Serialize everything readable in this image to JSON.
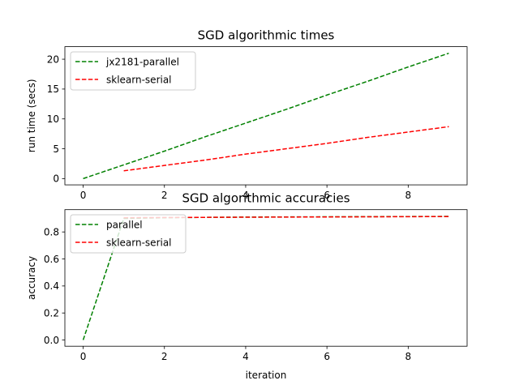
{
  "chart_data": [
    {
      "type": "line",
      "title": "SGD algorithmic times",
      "xlabel": "",
      "ylabel": "run time (secs)",
      "xlim": [
        -0.45,
        9.45
      ],
      "ylim": [
        -1.05,
        22.1
      ],
      "xticks": [
        0,
        2,
        4,
        6,
        8
      ],
      "yticks": [
        0,
        5,
        10,
        15,
        20
      ],
      "legend": "top-left",
      "grid": false,
      "series": [
        {
          "name": "jx2181-parallel",
          "color": "#008000",
          "style": "dashed",
          "x": [
            0,
            1,
            2,
            3,
            4,
            5,
            6,
            7,
            8,
            9
          ],
          "y": [
            0,
            2.3,
            4.6,
            7.0,
            9.3,
            11.6,
            14.0,
            16.3,
            18.7,
            21.0
          ]
        },
        {
          "name": "sklearn-serial",
          "color": "#ff0000",
          "style": "dashed",
          "x": [
            1,
            2,
            3,
            4,
            5,
            6,
            7,
            8,
            9
          ],
          "y": [
            1.3,
            2.2,
            3.1,
            4.1,
            5.0,
            5.9,
            6.9,
            7.8,
            8.7
          ]
        }
      ]
    },
    {
      "type": "line",
      "title": "SGD algorithmic accuracies",
      "xlabel": "iteration",
      "ylabel": "accuracy",
      "xlim": [
        -0.45,
        9.45
      ],
      "ylim": [
        -0.046,
        0.965
      ],
      "xticks": [
        0,
        2,
        4,
        6,
        8
      ],
      "yticks": [
        0.0,
        0.2,
        0.4,
        0.6,
        0.8
      ],
      "ytick_labels": [
        "0.0",
        "0.2",
        "0.4",
        "0.6",
        "0.8"
      ],
      "legend": "top-left",
      "grid": false,
      "series": [
        {
          "name": "parallel",
          "color": "#008000",
          "style": "dashed",
          "x": [
            0,
            1,
            2,
            3,
            4,
            5,
            6,
            7,
            8,
            9
          ],
          "y": [
            0.0,
            0.9,
            0.905,
            0.908,
            0.91,
            0.911,
            0.912,
            0.913,
            0.914,
            0.915
          ]
        },
        {
          "name": "sklearn-serial",
          "color": "#ff0000",
          "style": "dashed",
          "x": [
            1,
            2,
            3,
            4,
            5,
            6,
            7,
            8,
            9
          ],
          "y": [
            0.905,
            0.907,
            0.908,
            0.909,
            0.91,
            0.911,
            0.912,
            0.913,
            0.914
          ]
        }
      ]
    }
  ]
}
